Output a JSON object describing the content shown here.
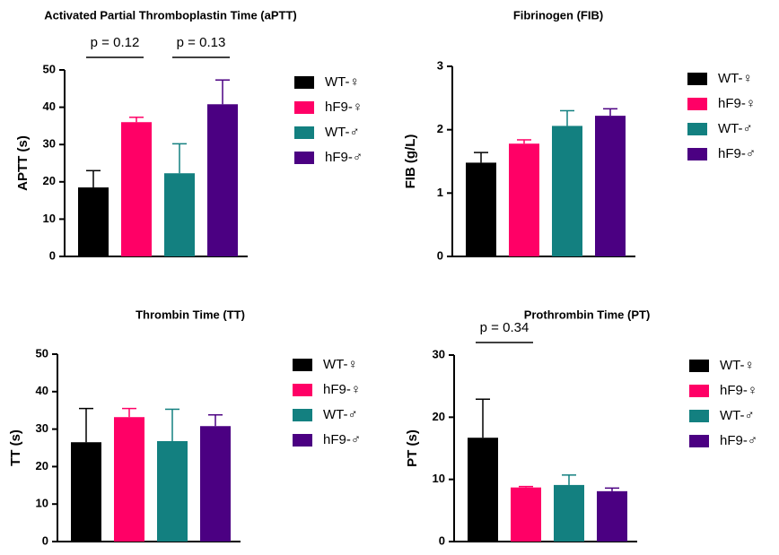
{
  "chart_data": [
    {
      "type": "bar",
      "title": "Activated Partial Thromboplastin Time (aPTT)",
      "ylabel": "APTT (s)",
      "categories": [
        "WT-♀",
        "hF9-♀",
        "WT-♂",
        "hF9-♂"
      ],
      "values": [
        18.5,
        36,
        22.3,
        40.8
      ],
      "errors": [
        4.5,
        1.3,
        7.9,
        6.5
      ],
      "colors": [
        "#000000",
        "#ff0066",
        "#138080",
        "#4b0082"
      ],
      "ylim": [
        0,
        50
      ],
      "yticks": [
        0,
        10,
        20,
        30,
        40,
        50
      ],
      "annotations": [
        "p = 0.12",
        "p = 0.13"
      ]
    },
    {
      "type": "bar",
      "title": "Fibrinogen (FIB)",
      "ylabel": "FIB (g/L)",
      "categories": [
        "WT-♀",
        "hF9-♀",
        "WT-♂",
        "hF9-♂"
      ],
      "values": [
        1.48,
        1.78,
        2.06,
        2.22
      ],
      "errors": [
        0.16,
        0.06,
        0.24,
        0.11
      ],
      "colors": [
        "#000000",
        "#ff0066",
        "#138080",
        "#4b0082"
      ],
      "ylim": [
        0,
        3
      ],
      "yticks": [
        0,
        1,
        2,
        3
      ]
    },
    {
      "type": "bar",
      "title": "Thrombin Time (TT)",
      "ylabel": "TT (s)",
      "categories": [
        "WT-♀",
        "hF9-♀",
        "WT-♂",
        "hF9-♂"
      ],
      "values": [
        26.5,
        33.2,
        26.8,
        30.8
      ],
      "errors": [
        9,
        2.3,
        8.5,
        3
      ],
      "colors": [
        "#000000",
        "#ff0066",
        "#138080",
        "#4b0082"
      ],
      "ylim": [
        0,
        50
      ],
      "yticks": [
        0,
        10,
        20,
        30,
        40,
        50
      ]
    },
    {
      "type": "bar",
      "title": "Prothrombin Time (PT)",
      "ylabel": "PT (s)",
      "categories": [
        "WT-♀",
        "hF9-♀",
        "WT-♂",
        "hF9-♂"
      ],
      "values": [
        16.7,
        8.7,
        9.1,
        8.1
      ],
      "errors": [
        6.2,
        0.15,
        1.6,
        0.5
      ],
      "colors": [
        "#000000",
        "#ff0066",
        "#138080",
        "#4b0082"
      ],
      "ylim": [
        0,
        30
      ],
      "yticks": [
        0,
        10,
        20,
        30
      ],
      "annotations": [
        "p = 0.34"
      ]
    }
  ]
}
